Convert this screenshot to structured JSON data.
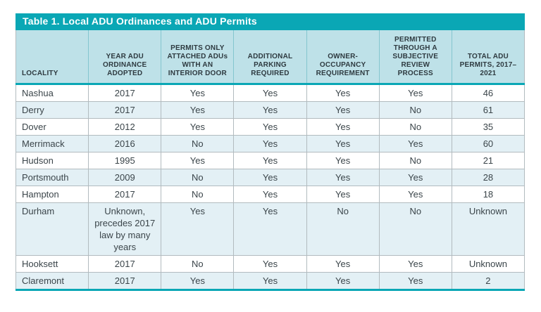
{
  "table": {
    "title": "Table 1. Local ADU Ordinances and ADU Permits",
    "columns": [
      "LOCALITY",
      "YEAR ADU ORDINANCE ADOPTED",
      "PERMITS ONLY ATTACHED ADUs WITH AN INTERIOR DOOR",
      "ADDITIONAL PARKING REQUIRED",
      "OWNER-OCCUPANCY REQUIREMENT",
      "PERMITTED THROUGH A SUBJECTIVE REVIEW PROCESS",
      "TOTAL ADU PERMITS, 2017–2021"
    ],
    "rows": [
      [
        "Nashua",
        "2017",
        "Yes",
        "Yes",
        "Yes",
        "Yes",
        "46"
      ],
      [
        "Derry",
        "2017",
        "Yes",
        "Yes",
        "Yes",
        "No",
        "61"
      ],
      [
        "Dover",
        "2012",
        "Yes",
        "Yes",
        "Yes",
        "No",
        "35"
      ],
      [
        "Merrimack",
        "2016",
        "No",
        "Yes",
        "Yes",
        "Yes",
        "60"
      ],
      [
        "Hudson",
        "1995",
        "Yes",
        "Yes",
        "Yes",
        "No",
        "21"
      ],
      [
        "Portsmouth",
        "2009",
        "No",
        "Yes",
        "Yes",
        "Yes",
        "28"
      ],
      [
        "Hampton",
        "2017",
        "No",
        "Yes",
        "Yes",
        "Yes",
        "18"
      ],
      [
        "Durham",
        "Unknown, precedes 2017 law by many years",
        "Yes",
        "Yes",
        "No",
        "No",
        "Unknown"
      ],
      [
        "Hooksett",
        "2017",
        "No",
        "Yes",
        "Yes",
        "Yes",
        "Unknown"
      ],
      [
        "Claremont",
        "2017",
        "Yes",
        "Yes",
        "Yes",
        "Yes",
        "2"
      ]
    ]
  },
  "colors": {
    "teal": "#0aa7b5",
    "header_bg": "#bee1e8",
    "row_stripe": "#e3f0f5",
    "grid_line": "#b2bbbf",
    "header_separator": "#84c6cf",
    "body_text": "#3b454a",
    "header_text": "#2e3a40",
    "title_text": "#ffffff"
  }
}
